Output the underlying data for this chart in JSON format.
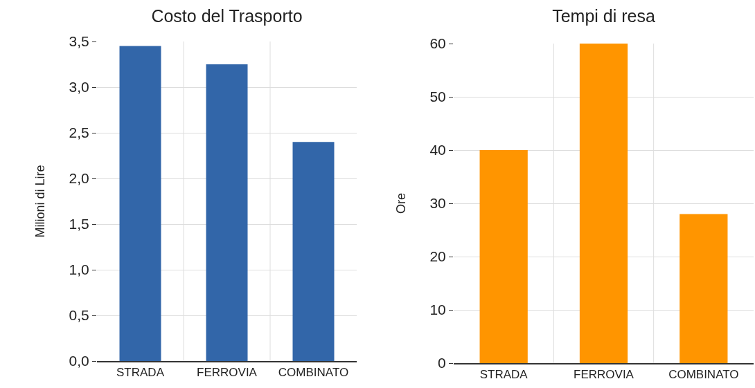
{
  "chart_data": [
    {
      "type": "bar",
      "title": "Costo del Trasporto",
      "ylabel": "Milioni di Lire",
      "categories": [
        "STRADA",
        "FERROVIA",
        "COMBINATO"
      ],
      "values": [
        3.45,
        3.25,
        2.4
      ],
      "color": "#3266a9",
      "ylim": [
        0,
        3.5
      ],
      "yticks": [
        {
          "value": 0,
          "label": "0,0"
        },
        {
          "value": 0.5,
          "label": "0,5"
        },
        {
          "value": 1,
          "label": "1,0"
        },
        {
          "value": 1.5,
          "label": "1,5"
        },
        {
          "value": 2,
          "label": "2,0"
        },
        {
          "value": 2.5,
          "label": "2,5"
        },
        {
          "value": 3,
          "label": "3,0"
        },
        {
          "value": 3.5,
          "label": "3,5"
        }
      ],
      "grid": true
    },
    {
      "type": "bar",
      "title": "Tempi di resa",
      "ylabel": "Ore",
      "categories": [
        "STRADA",
        "FERROVIA",
        "COMBINATO"
      ],
      "values": [
        40,
        60,
        28
      ],
      "color": "#ff9500",
      "ylim": [
        0,
        60
      ],
      "yticks": [
        0,
        10,
        20,
        30,
        40,
        50,
        60
      ],
      "grid": true
    }
  ]
}
